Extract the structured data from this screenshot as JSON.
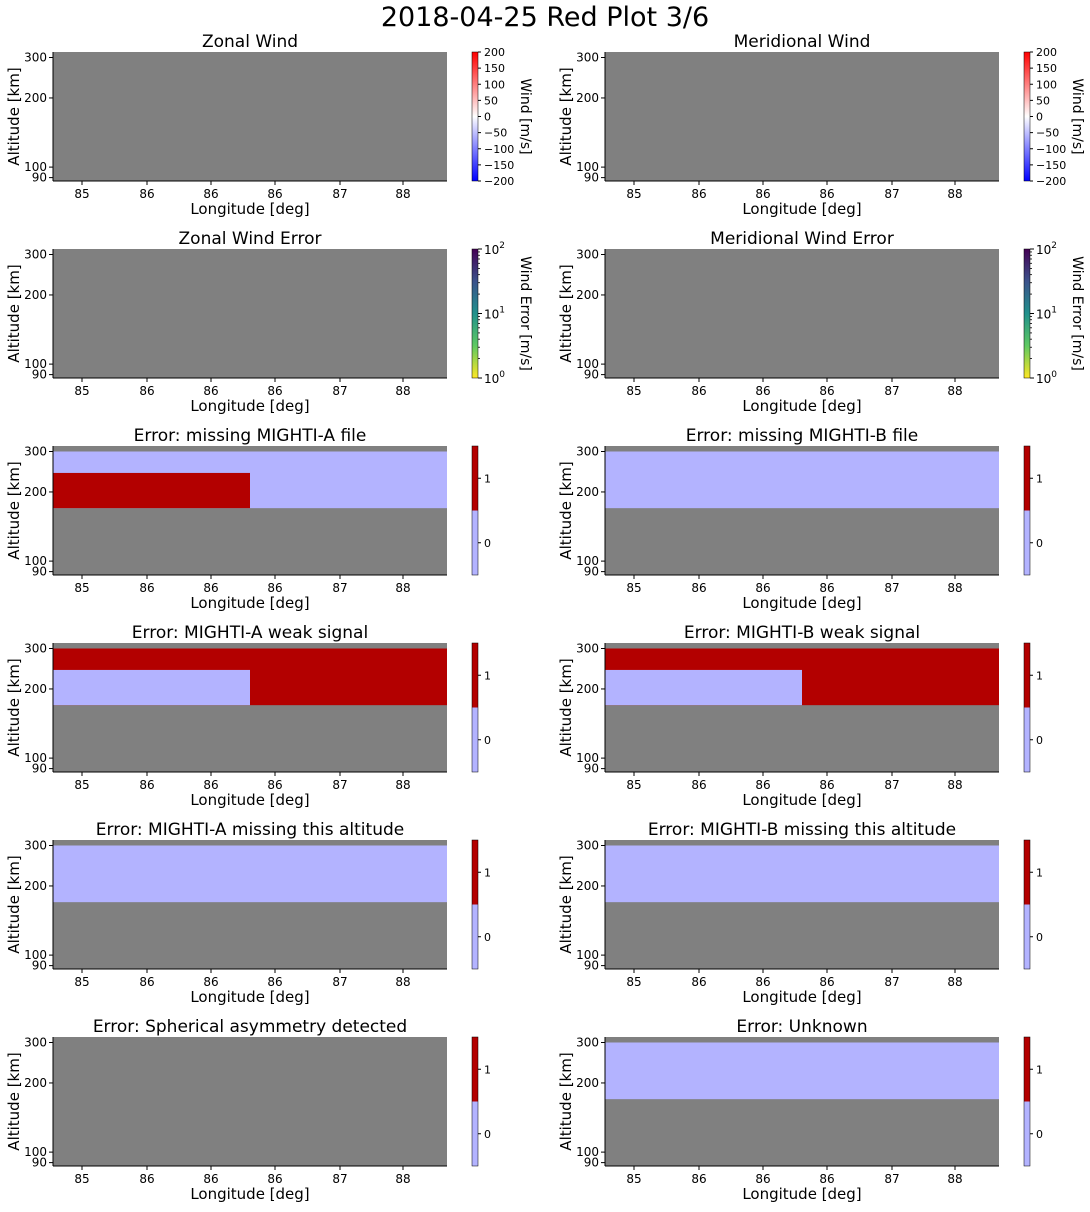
{
  "figure": {
    "title": "2018-04-25 Red Plot 3/6",
    "colors": {
      "missing": "#808080",
      "flag_false": "#b3b3ff",
      "flag_true": "#b30000"
    }
  },
  "chart_data": [
    {
      "type": "heatmap",
      "name": "zonal-wind",
      "title": "Zonal Wind",
      "xlabel": "Longitude [deg]",
      "ylabel": "Altitude [km]",
      "xticks": [
        "85",
        "86",
        "86",
        "86",
        "87",
        "88"
      ],
      "yticks": [
        "90",
        "100",
        "200",
        "300"
      ],
      "ylim": [
        87,
        317
      ],
      "yscale": "log",
      "colorbar": {
        "kind": "diverging",
        "label": "Wind [m/s]",
        "range": [
          -200,
          200
        ],
        "ticks": [
          "200",
          "150",
          "100",
          "50",
          "0",
          "−50",
          "−100",
          "−150",
          "−200"
        ]
      },
      "regions": []
    },
    {
      "type": "heatmap",
      "name": "meridional-wind",
      "title": "Meridional Wind",
      "xlabel": "Longitude [deg]",
      "ylabel": "Altitude [km]",
      "xticks": [
        "85",
        "86",
        "86",
        "86",
        "87",
        "88"
      ],
      "yticks": [
        "90",
        "100",
        "200",
        "300"
      ],
      "ylim": [
        87,
        317
      ],
      "yscale": "log",
      "colorbar": {
        "kind": "diverging",
        "label": "Wind [m/s]",
        "range": [
          -200,
          200
        ],
        "ticks": [
          "200",
          "150",
          "100",
          "50",
          "0",
          "−50",
          "−100",
          "−150",
          "−200"
        ]
      },
      "regions": []
    },
    {
      "type": "heatmap",
      "name": "zonal-wind-error",
      "title": "Zonal Wind Error",
      "xlabel": "Longitude [deg]",
      "ylabel": "Altitude [km]",
      "xticks": [
        "85",
        "86",
        "86",
        "86",
        "87",
        "88"
      ],
      "yticks": [
        "90",
        "100",
        "200",
        "300"
      ],
      "ylim": [
        87,
        317
      ],
      "yscale": "log",
      "colorbar": {
        "kind": "log",
        "label": "Wind Error [m/s]",
        "range": [
          1,
          100
        ],
        "ticks": [
          "10",
          "10",
          "10"
        ],
        "exponents": [
          "2",
          "1",
          "0"
        ]
      },
      "regions": []
    },
    {
      "type": "heatmap",
      "name": "meridional-wind-error",
      "title": "Meridional Wind Error",
      "xlabel": "Longitude [deg]",
      "ylabel": "Altitude [km]",
      "xticks": [
        "85",
        "86",
        "86",
        "86",
        "87",
        "88"
      ],
      "yticks": [
        "90",
        "100",
        "200",
        "300"
      ],
      "ylim": [
        87,
        317
      ],
      "yscale": "log",
      "colorbar": {
        "kind": "log",
        "label": "Wind Error [m/s]",
        "range": [
          1,
          100
        ],
        "ticks": [
          "10",
          "10",
          "10"
        ],
        "exponents": [
          "2",
          "1",
          "0"
        ]
      },
      "regions": []
    },
    {
      "type": "heatmap",
      "name": "missing-mighti-a-file",
      "title": "Error: missing MIGHTI-A file",
      "xlabel": "Longitude [deg]",
      "ylabel": "Altitude [km]",
      "xticks": [
        "85",
        "86",
        "86",
        "86",
        "87",
        "88"
      ],
      "yticks": [
        "90",
        "100",
        "200",
        "300"
      ],
      "ylim": [
        87,
        317
      ],
      "yscale": "log",
      "colorbar": {
        "kind": "flag",
        "ticks": [
          "1",
          "0"
        ]
      },
      "regions": [
        {
          "value": 0,
          "x": [
            0,
            1
          ],
          "alt": [
            170,
            300
          ]
        },
        {
          "value": 1,
          "x": [
            0,
            0.5
          ],
          "alt": [
            170,
            242
          ]
        }
      ]
    },
    {
      "type": "heatmap",
      "name": "missing-mighti-b-file",
      "title": "Error: missing MIGHTI-B file",
      "xlabel": "Longitude [deg]",
      "ylabel": "Altitude [km]",
      "xticks": [
        "85",
        "86",
        "86",
        "86",
        "87",
        "88"
      ],
      "yticks": [
        "90",
        "100",
        "200",
        "300"
      ],
      "ylim": [
        87,
        317
      ],
      "yscale": "log",
      "colorbar": {
        "kind": "flag",
        "ticks": [
          "1",
          "0"
        ]
      },
      "regions": [
        {
          "value": 0,
          "x": [
            0,
            1
          ],
          "alt": [
            170,
            300
          ]
        }
      ]
    },
    {
      "type": "heatmap",
      "name": "mighti-a-weak-signal",
      "title": "Error: MIGHTI-A weak signal",
      "xlabel": "Longitude [deg]",
      "ylabel": "Altitude [km]",
      "xticks": [
        "85",
        "86",
        "86",
        "86",
        "87",
        "88"
      ],
      "yticks": [
        "90",
        "100",
        "200",
        "300"
      ],
      "ylim": [
        87,
        317
      ],
      "yscale": "log",
      "colorbar": {
        "kind": "flag",
        "ticks": [
          "1",
          "0"
        ]
      },
      "regions": [
        {
          "value": 1,
          "x": [
            0,
            1
          ],
          "alt": [
            170,
            300
          ]
        },
        {
          "value": 0,
          "x": [
            0,
            0.5
          ],
          "alt": [
            170,
            242
          ]
        }
      ]
    },
    {
      "type": "heatmap",
      "name": "mighti-b-weak-signal",
      "title": "Error: MIGHTI-B weak signal",
      "xlabel": "Longitude [deg]",
      "ylabel": "Altitude [km]",
      "xticks": [
        "85",
        "86",
        "86",
        "86",
        "87",
        "88"
      ],
      "yticks": [
        "90",
        "100",
        "200",
        "300"
      ],
      "ylim": [
        87,
        317
      ],
      "yscale": "log",
      "colorbar": {
        "kind": "flag",
        "ticks": [
          "1",
          "0"
        ]
      },
      "regions": [
        {
          "value": 1,
          "x": [
            0,
            1
          ],
          "alt": [
            170,
            300
          ]
        },
        {
          "value": 0,
          "x": [
            0,
            0.5
          ],
          "alt": [
            170,
            242
          ]
        }
      ]
    },
    {
      "type": "heatmap",
      "name": "mighti-a-missing-altitude",
      "title": "Error: MIGHTI-A missing this altitude",
      "xlabel": "Longitude [deg]",
      "ylabel": "Altitude [km]",
      "xticks": [
        "85",
        "86",
        "86",
        "86",
        "87",
        "88"
      ],
      "yticks": [
        "90",
        "100",
        "200",
        "300"
      ],
      "ylim": [
        87,
        317
      ],
      "yscale": "log",
      "colorbar": {
        "kind": "flag",
        "ticks": [
          "1",
          "0"
        ]
      },
      "regions": [
        {
          "value": 0,
          "x": [
            0,
            1
          ],
          "alt": [
            170,
            300
          ]
        }
      ]
    },
    {
      "type": "heatmap",
      "name": "mighti-b-missing-altitude",
      "title": "Error: MIGHTI-B missing this altitude",
      "xlabel": "Longitude [deg]",
      "ylabel": "Altitude [km]",
      "xticks": [
        "85",
        "86",
        "86",
        "86",
        "87",
        "88"
      ],
      "yticks": [
        "90",
        "100",
        "200",
        "300"
      ],
      "ylim": [
        87,
        317
      ],
      "yscale": "log",
      "colorbar": {
        "kind": "flag",
        "ticks": [
          "1",
          "0"
        ]
      },
      "regions": [
        {
          "value": 0,
          "x": [
            0,
            1
          ],
          "alt": [
            170,
            300
          ]
        }
      ]
    },
    {
      "type": "heatmap",
      "name": "spherical-asymmetry",
      "title": "Error: Spherical asymmetry detected",
      "xlabel": "Longitude [deg]",
      "ylabel": "Altitude [km]",
      "xticks": [
        "85",
        "86",
        "86",
        "86",
        "87",
        "88"
      ],
      "yticks": [
        "90",
        "100",
        "200",
        "300"
      ],
      "ylim": [
        87,
        317
      ],
      "yscale": "log",
      "colorbar": {
        "kind": "flag",
        "ticks": [
          "1",
          "0"
        ]
      },
      "regions": []
    },
    {
      "type": "heatmap",
      "name": "unknown-error",
      "title": "Error: Unknown",
      "xlabel": "Longitude [deg]",
      "ylabel": "Altitude [km]",
      "xticks": [
        "85",
        "86",
        "86",
        "86",
        "87",
        "88"
      ],
      "yticks": [
        "90",
        "100",
        "200",
        "300"
      ],
      "ylim": [
        87,
        317
      ],
      "yscale": "log",
      "colorbar": {
        "kind": "flag",
        "ticks": [
          "1",
          "0"
        ]
      },
      "regions": [
        {
          "value": 0,
          "x": [
            0,
            1
          ],
          "alt": [
            170,
            300
          ]
        }
      ]
    }
  ]
}
